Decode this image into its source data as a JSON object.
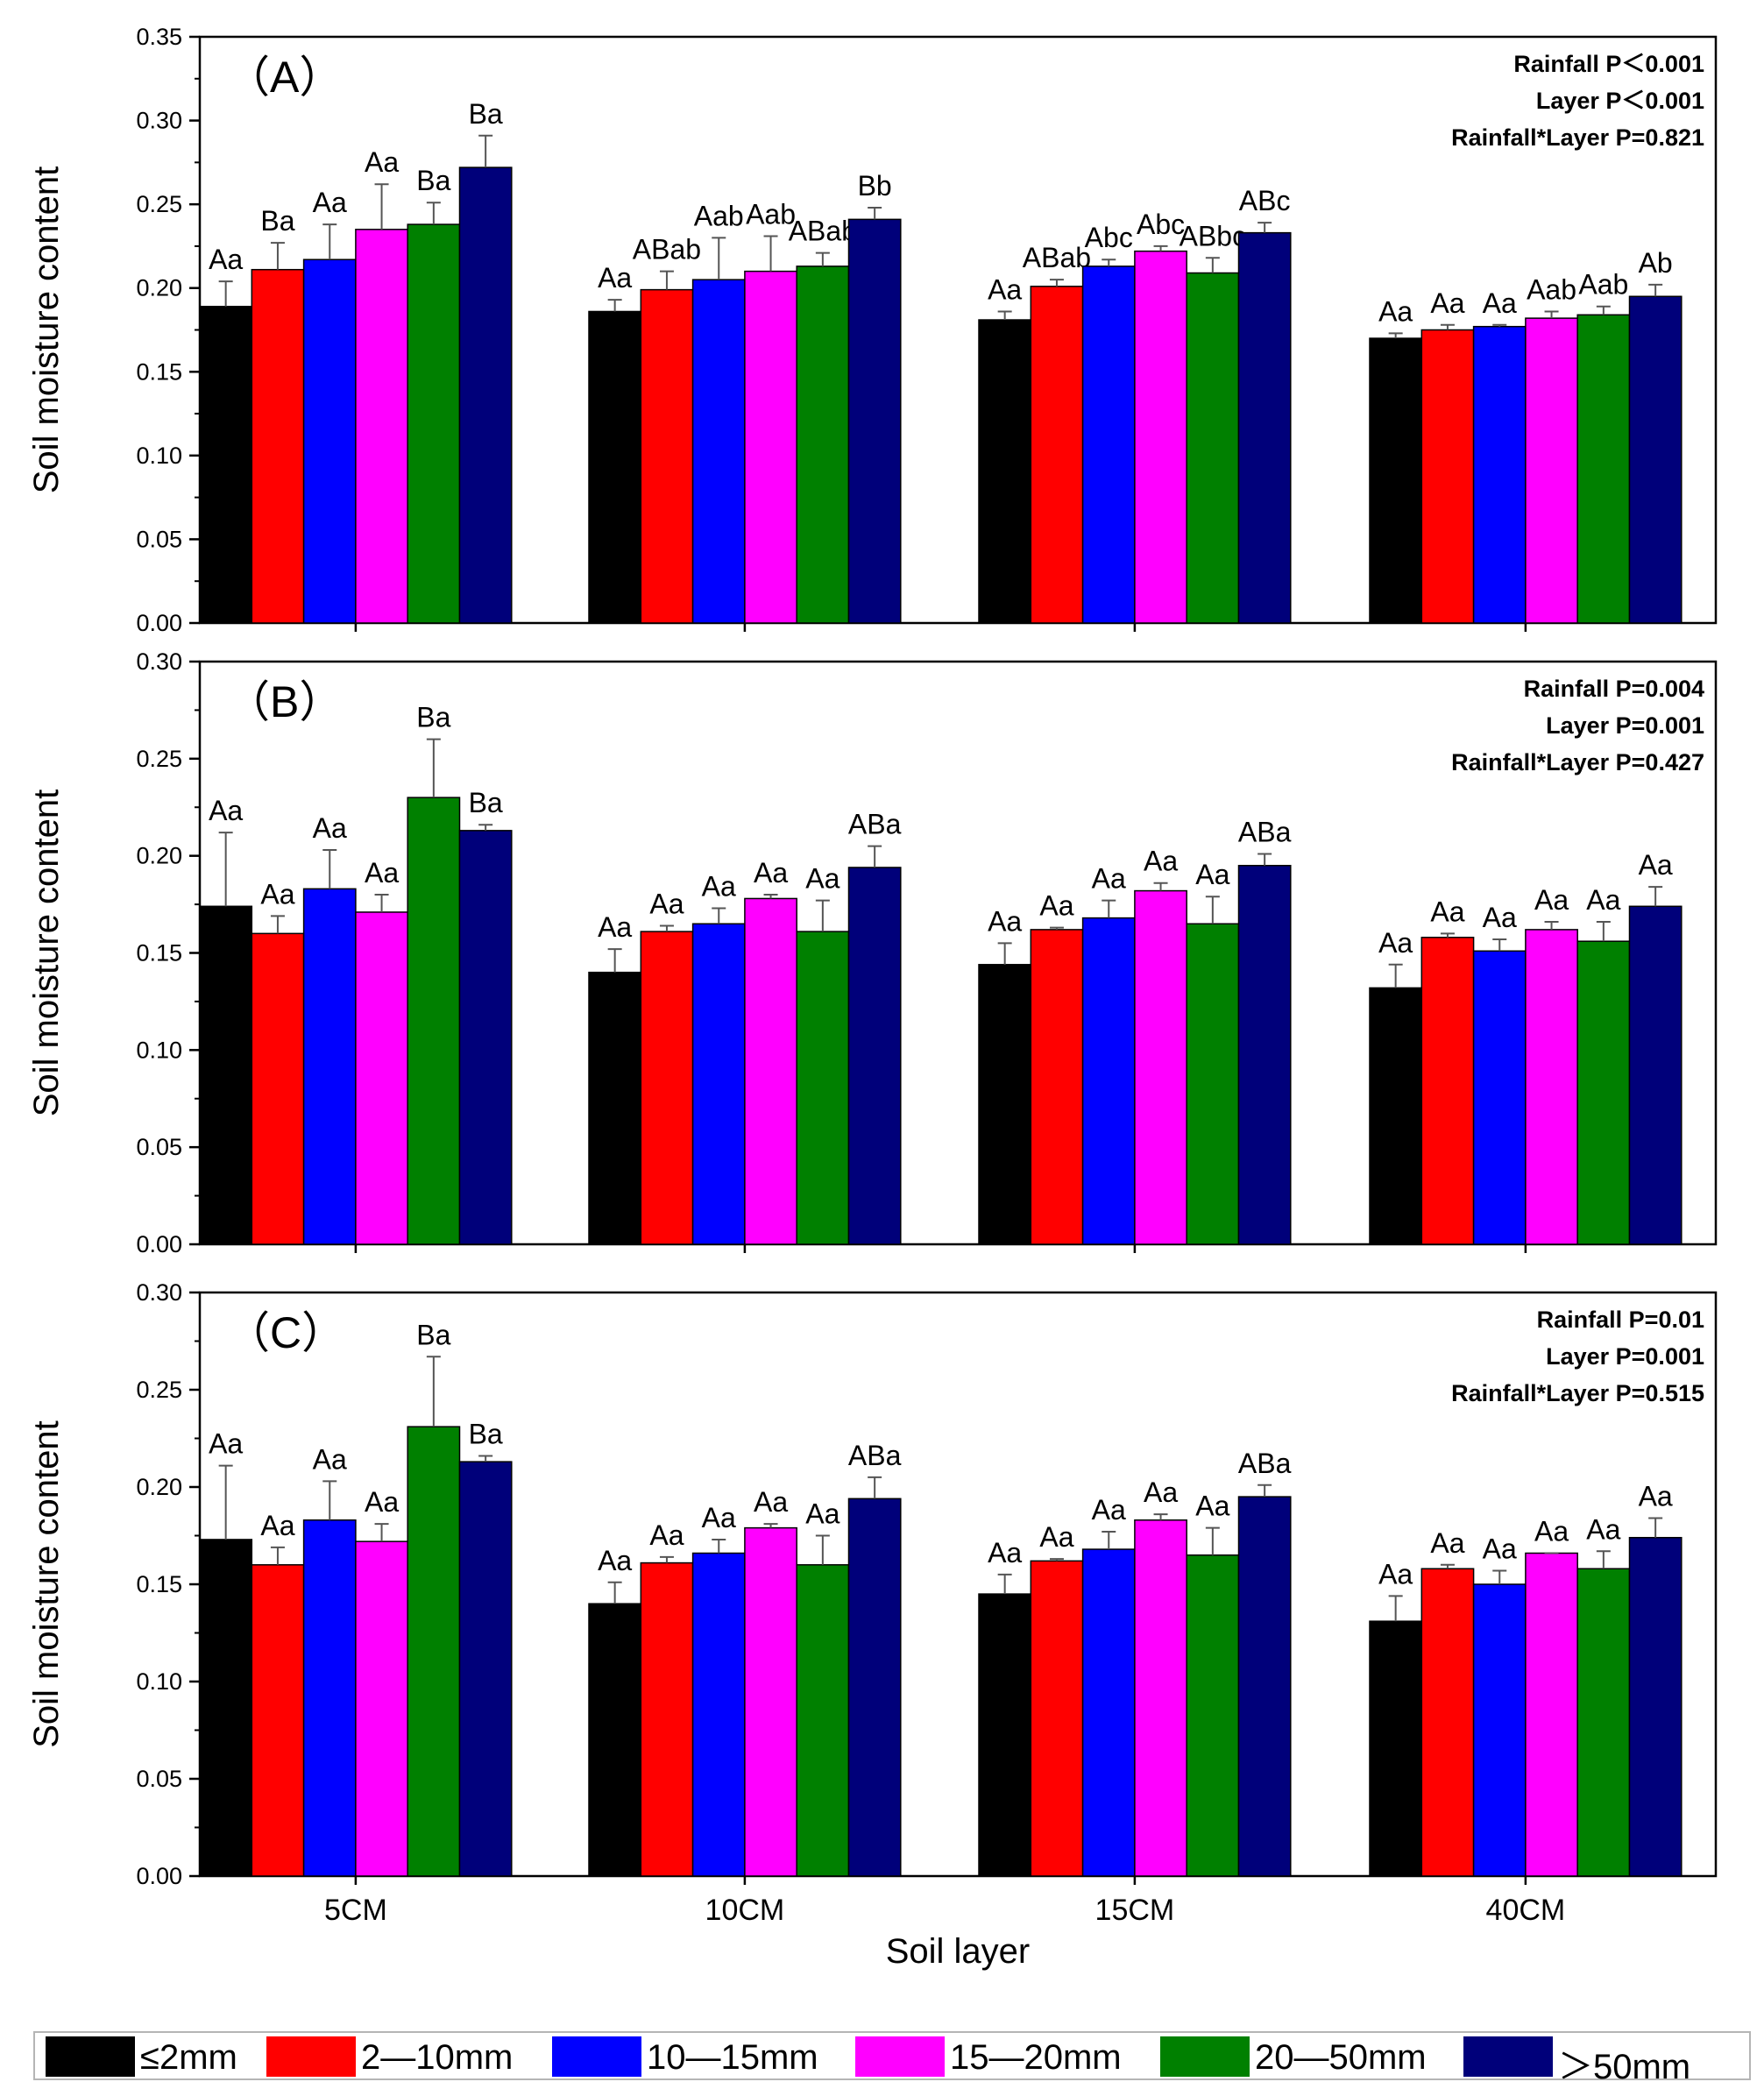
{
  "chart_data": {
    "type": "bar",
    "xlabel": "Soil layer",
    "ylabel": "Soil moisture content",
    "categories": [
      "5CM",
      "10CM",
      "15CM",
      "40CM"
    ],
    "legend": [
      "≤2mm",
      "2—10mm",
      "10—15mm",
      "15—20mm",
      "20—50mm",
      "＞50mm"
    ],
    "colors": [
      "#000000",
      "#ff0000",
      "#0000ff",
      "#ff00ff",
      "#008000",
      "#00007a"
    ],
    "panels": [
      {
        "label": "（A）",
        "ylim": [
          0,
          0.35
        ],
        "yticks": [
          "0.00",
          "0.05",
          "0.10",
          "0.15",
          "0.20",
          "0.25",
          "0.30",
          "0.35"
        ],
        "stats": [
          "Rainfall P＜0.001",
          "Layer P＜0.001",
          "Rainfall*Layer P=0.821"
        ],
        "values": [
          [
            0.189,
            0.211,
            0.217,
            0.235,
            0.238,
            0.272
          ],
          [
            0.186,
            0.199,
            0.205,
            0.21,
            0.213,
            0.241
          ],
          [
            0.181,
            0.201,
            0.213,
            0.222,
            0.209,
            0.233
          ],
          [
            0.17,
            0.175,
            0.177,
            0.182,
            0.184,
            0.195
          ]
        ],
        "errors": [
          [
            0.015,
            0.016,
            0.021,
            0.027,
            0.013,
            0.019
          ],
          [
            0.007,
            0.011,
            0.025,
            0.021,
            0.008,
            0.007
          ],
          [
            0.005,
            0.004,
            0.004,
            0.003,
            0.009,
            0.006
          ],
          [
            0.003,
            0.003,
            0.001,
            0.004,
            0.005,
            0.007
          ]
        ],
        "letters": [
          [
            "Aa",
            "Ba",
            "Aa",
            "Aa",
            "Ba",
            "Ba"
          ],
          [
            "Aa",
            "ABab",
            "Aab",
            "Aab",
            "ABab",
            "Bb"
          ],
          [
            "Aa",
            "ABab",
            "Abc",
            "Abc",
            "ABbc",
            "ABc"
          ],
          [
            "Aa",
            "Aa",
            "Aa",
            "Aab",
            "Aab",
            "Ab"
          ]
        ]
      },
      {
        "label": "（B）",
        "ylim": [
          0,
          0.3
        ],
        "yticks": [
          "0.00",
          "0.05",
          "0.10",
          "0.15",
          "0.20",
          "0.25",
          "0.30"
        ],
        "stats": [
          "Rainfall P=0.004",
          "Layer P=0.001",
          "Rainfall*Layer P=0.427"
        ],
        "values": [
          [
            0.174,
            0.16,
            0.183,
            0.171,
            0.23,
            0.213
          ],
          [
            0.14,
            0.161,
            0.165,
            0.178,
            0.161,
            0.194
          ],
          [
            0.144,
            0.162,
            0.168,
            0.182,
            0.165,
            0.195
          ],
          [
            0.132,
            0.158,
            0.151,
            0.162,
            0.156,
            0.174
          ]
        ],
        "errors": [
          [
            0.038,
            0.009,
            0.02,
            0.009,
            0.03,
            0.003
          ],
          [
            0.012,
            0.003,
            0.008,
            0.002,
            0.016,
            0.011
          ],
          [
            0.011,
            0.001,
            0.009,
            0.004,
            0.014,
            0.006
          ],
          [
            0.012,
            0.002,
            0.006,
            0.004,
            0.01,
            0.01
          ]
        ],
        "letters": [
          [
            "Aa",
            "Aa",
            "Aa",
            "Aa",
            "Ba",
            "Ba"
          ],
          [
            "Aa",
            "Aa",
            "Aa",
            "Aa",
            "Aa",
            "ABa"
          ],
          [
            "Aa",
            "Aa",
            "Aa",
            "Aa",
            "Aa",
            "ABa"
          ],
          [
            "Aa",
            "Aa",
            "Aa",
            "Aa",
            "Aa",
            "Aa"
          ]
        ]
      },
      {
        "label": "（C）",
        "ylim": [
          0,
          0.3
        ],
        "yticks": [
          "0.00",
          "0.05",
          "0.10",
          "0.15",
          "0.20",
          "0.25",
          "0.30"
        ],
        "stats": [
          "Rainfall P=0.01",
          "Layer P=0.001",
          "Rainfall*Layer P=0.515"
        ],
        "values": [
          [
            0.173,
            0.16,
            0.183,
            0.172,
            0.231,
            0.213
          ],
          [
            0.14,
            0.161,
            0.166,
            0.179,
            0.16,
            0.194
          ],
          [
            0.145,
            0.162,
            0.168,
            0.183,
            0.165,
            0.195
          ],
          [
            0.131,
            0.158,
            0.15,
            0.166,
            0.158,
            0.174
          ]
        ],
        "errors": [
          [
            0.038,
            0.009,
            0.02,
            0.009,
            0.036,
            0.003
          ],
          [
            0.011,
            0.003,
            0.007,
            0.002,
            0.015,
            0.011
          ],
          [
            0.01,
            0.001,
            0.009,
            0.003,
            0.014,
            0.006
          ],
          [
            0.013,
            0.002,
            0.007,
            0.0,
            0.009,
            0.01
          ]
        ],
        "letters": [
          [
            "Aa",
            "Aa",
            "Aa",
            "Aa",
            "Ba",
            "Ba"
          ],
          [
            "Aa",
            "Aa",
            "Aa",
            "Aa",
            "Aa",
            "ABa"
          ],
          [
            "Aa",
            "Aa",
            "Aa",
            "Aa",
            "Aa",
            "ABa"
          ],
          [
            "Aa",
            "Aa",
            "Aa",
            "Aa",
            "Aa",
            "Aa"
          ]
        ]
      }
    ]
  }
}
